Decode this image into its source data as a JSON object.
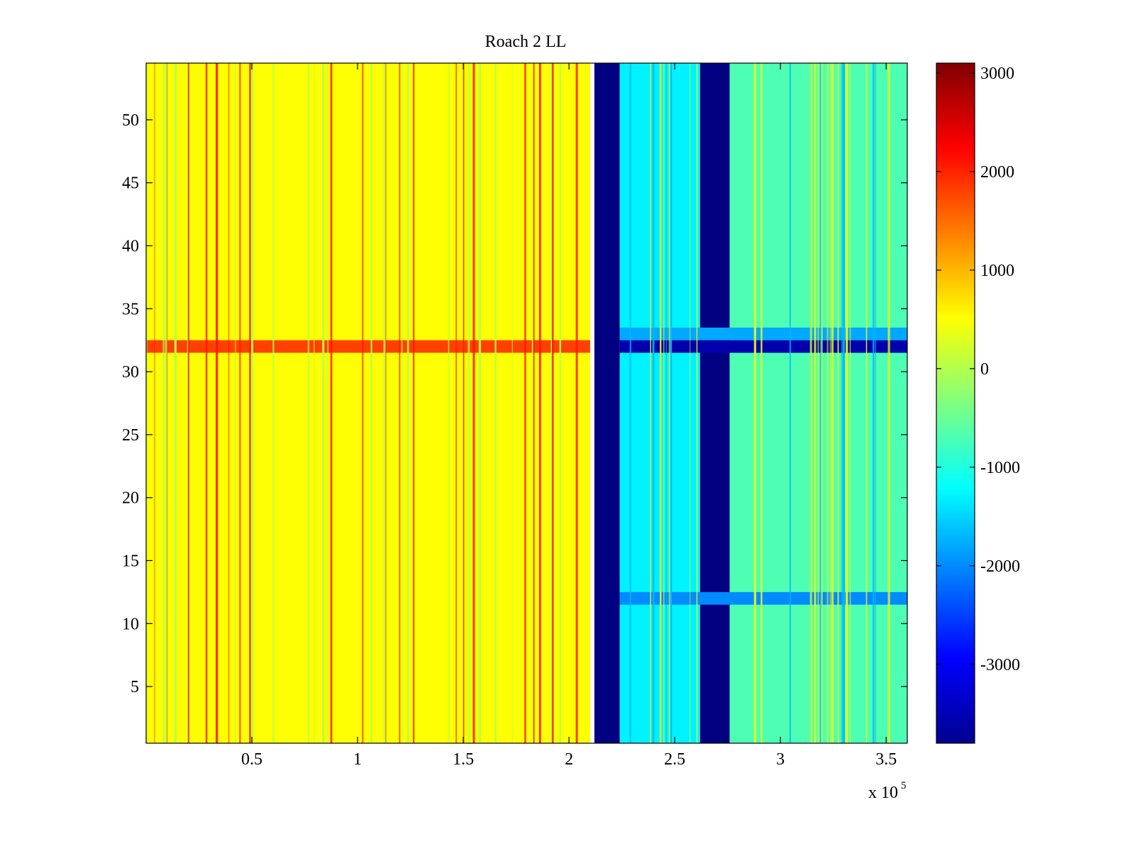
{
  "chart_data": {
    "type": "heatmap",
    "title": "Roach 2 LL",
    "xlabel": "",
    "ylabel": "",
    "x_multiplier_label": "x 10",
    "x_multiplier_exponent": "5",
    "xlim": [
      0,
      360000
    ],
    "ylim": [
      0.5,
      54.5
    ],
    "xticks": [
      50000,
      100000,
      150000,
      200000,
      250000,
      300000,
      350000
    ],
    "xtick_labels": [
      "0.5",
      "1",
      "1.5",
      "2",
      "2.5",
      "3",
      "3.5"
    ],
    "yticks": [
      5,
      10,
      15,
      20,
      25,
      30,
      35,
      40,
      45,
      50
    ],
    "ytick_labels": [
      "5",
      "10",
      "15",
      "20",
      "25",
      "30",
      "35",
      "40",
      "45",
      "50"
    ],
    "colorbar": {
      "colormap": "jet",
      "clim": [
        -3800,
        3100
      ],
      "ticks": [
        3000,
        2000,
        1000,
        0,
        -1000,
        -2000,
        -3000
      ],
      "tick_labels": [
        "3000",
        "2000",
        "1000",
        "0",
        "-1000",
        "-2000",
        "-3000"
      ]
    },
    "regions": [
      {
        "x": [
          0,
          210000
        ],
        "y": [
          0.5,
          54.5
        ],
        "value": 500,
        "note": "yellow-orange band"
      },
      {
        "x": [
          212000,
          224000
        ],
        "y": [
          0.5,
          54.5
        ],
        "value": -3800,
        "note": "dark blue gap"
      },
      {
        "x": [
          224000,
          262000
        ],
        "y": [
          0.5,
          54.5
        ],
        "value": -1300,
        "note": "cyan band"
      },
      {
        "x": [
          262000,
          276000
        ],
        "y": [
          0.5,
          54.5
        ],
        "value": -3800,
        "note": "dark blue gap"
      },
      {
        "x": [
          276000,
          360000
        ],
        "y": [
          0.5,
          54.5
        ],
        "value": -700,
        "note": "cyan-green band"
      },
      {
        "x": [
          0,
          210000
        ],
        "y": [
          31.5,
          32.5
        ],
        "value": 1800,
        "note": "hot row 32"
      },
      {
        "x": [
          224000,
          360000
        ],
        "y": [
          31.5,
          32.5
        ],
        "value": -3500,
        "note": "cold row 32"
      },
      {
        "x": [
          224000,
          360000
        ],
        "y": [
          32.5,
          33.5
        ],
        "value": -1800,
        "note": "row 33"
      },
      {
        "x": [
          224000,
          360000
        ],
        "y": [
          11.5,
          12.5
        ],
        "value": -2000,
        "note": "row 12"
      }
    ]
  }
}
